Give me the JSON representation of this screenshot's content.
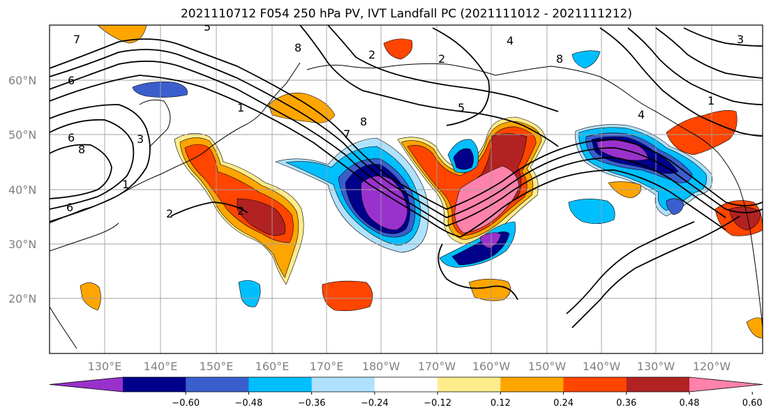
{
  "title": "2021110712 F054 250 hPa PV, IVT Landfall PC (2021111012 - 2021111212)",
  "lat_labels": [
    "60°N",
    "50°N",
    "40°N",
    "30°N",
    "20°N"
  ],
  "lon_labels": [
    "130°E",
    "140°E",
    "150°E",
    "160°E",
    "170°E",
    "180°W",
    "170°W",
    "160°W",
    "150°W",
    "140°W",
    "130°W",
    "120°W"
  ],
  "colorbar": {
    "ticks": [
      "−0.60",
      "−0.48",
      "−0.36",
      "−0.24",
      "−0.12",
      "0.12",
      "0.24",
      "0.36",
      "0.48",
      "0.60"
    ],
    "colors": [
      "#9932cc",
      "#00008b",
      "#3a5fcd",
      "#00bfff",
      "#b0e2ff",
      "#ffffff",
      "#ffec8b",
      "#ffa500",
      "#ff4500",
      "#b22222",
      "#ff82ab"
    ]
  },
  "contour_labels": [
    "7",
    "6",
    "6",
    "8",
    "6",
    "3",
    "1",
    "2",
    "2",
    "5",
    "8",
    "7",
    "2",
    "4",
    "8",
    "1",
    "8",
    "5",
    "4",
    "2",
    "3",
    "1"
  ]
}
